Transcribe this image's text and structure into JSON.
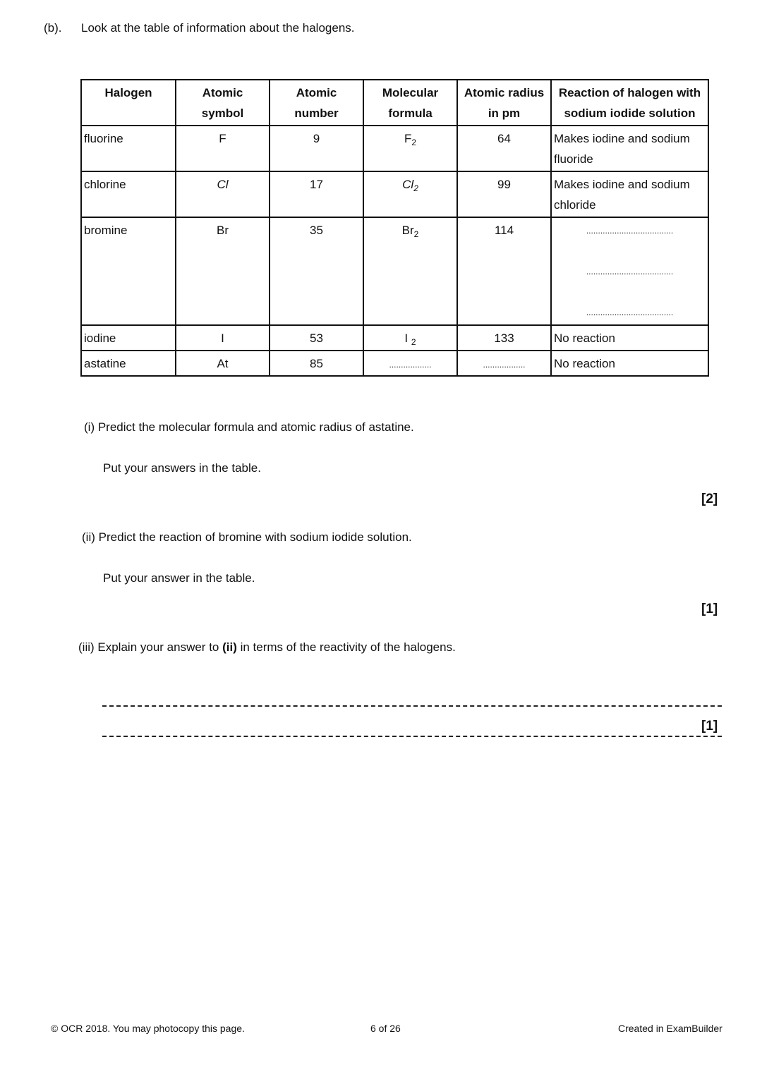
{
  "question": {
    "label": "(b).",
    "intro": "Look at the table of information about the halogens."
  },
  "table": {
    "headers": [
      [
        "Halogen",
        ""
      ],
      [
        "Atomic",
        "symbol"
      ],
      [
        "Atomic",
        "number"
      ],
      [
        "Molecular",
        "formula"
      ],
      [
        "Atomic radius",
        "in pm"
      ],
      [
        "Reaction of halogen with",
        "sodium iodide solution"
      ]
    ],
    "rows": [
      {
        "name": "fluorine",
        "symbol": "F",
        "number": "9",
        "formula_base": "F",
        "formula_sub": "2",
        "radius": "64",
        "reaction": [
          "Makes iodine and sodium",
          "fluoride"
        ]
      },
      {
        "name": "chlorine",
        "symbol": "Cl",
        "number": "17",
        "formula_base": "Cl",
        "formula_sub": "2",
        "radius": "99",
        "reaction": [
          "Makes iodine and sodium",
          "chloride"
        ]
      },
      {
        "name": "bromine",
        "symbol": "Br",
        "number": "35",
        "formula_base": "Br",
        "formula_sub": "2",
        "radius": "114",
        "reaction_blank": "....................................."
      },
      {
        "name": "iodine",
        "symbol": "I",
        "number": "53",
        "formula_base": "I",
        "formula_sub": "2",
        "radius": "133",
        "reaction": [
          "No reaction"
        ]
      },
      {
        "name": "astatine",
        "symbol": "At",
        "number": "85",
        "formula_blank": "..................",
        "radius_blank": "..................",
        "reaction": [
          "No reaction"
        ]
      }
    ]
  },
  "parts": [
    {
      "label": "(i)",
      "text": "Predict the molecular formula and atomic radius of astatine.",
      "sub": "Put your answers in the table.",
      "marks": "[2]"
    },
    {
      "label": "(ii)",
      "text": "Predict the reaction of bromine with sodium iodide solution.",
      "sub": "Put your answer in the table.",
      "marks": "[1]"
    },
    {
      "label": "(iii)",
      "text_before": "Explain your answer to ",
      "text_bold": "(ii)",
      "text_after": " in terms of the reactivity of the halogens.",
      "marks": "[1]"
    }
  ],
  "footer": {
    "copyright": "© OCR 2018. You may photocopy this page.",
    "page": "6 of 26",
    "credit": "Created in ExamBuilder"
  }
}
